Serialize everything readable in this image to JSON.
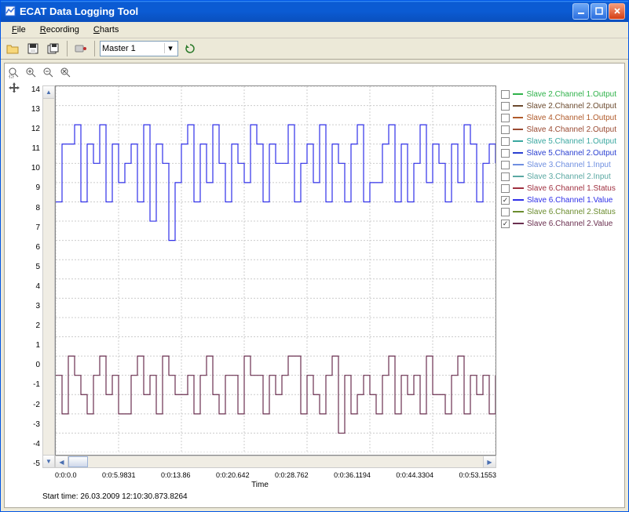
{
  "window": {
    "title": "ECAT Data Logging Tool"
  },
  "menu": {
    "file": "File",
    "recording": "Recording",
    "charts": "Charts"
  },
  "toolbar": {
    "master_selected": "Master 1"
  },
  "chart": {
    "type": "step-line",
    "background_color": "#ffffff",
    "grid_color": "#cccccc",
    "xlabel": "Time",
    "ylim": [
      -5,
      14
    ],
    "yticks": [
      -5,
      -4,
      -3,
      -2,
      -1,
      0,
      1,
      2,
      3,
      4,
      5,
      6,
      7,
      8,
      9,
      10,
      11,
      12,
      13,
      14
    ],
    "xticks": [
      "0:0:0.0",
      "0:0:5.9831",
      "0:0:13.86",
      "0:0:20.642",
      "0:0:28.762",
      "0:0:36.1194",
      "0:0:44.3304",
      "0:0:53.1553"
    ],
    "start_time_label": "Start time: 26.03.2009 12:10:30.873.8264"
  },
  "series": {
    "s1": {
      "label": "Slave 2.Channel 1.Output",
      "color": "#2fb24a",
      "checked": false
    },
    "s2": {
      "label": "Slave 2.Channel 2.Output",
      "color": "#6b4a2e",
      "checked": false
    },
    "s3": {
      "label": "Slave 4.Channel 1.Output",
      "color": "#b05a2a",
      "checked": false
    },
    "s4": {
      "label": "Slave 4.Channel 2.Output",
      "color": "#9a4a32",
      "checked": false
    },
    "s5": {
      "label": "Slave 5.Channel 1.Output",
      "color": "#3aa7a0",
      "checked": false
    },
    "s6": {
      "label": "Slave 5.Channel 2.Output",
      "color": "#2a3fd1",
      "checked": false
    },
    "s7": {
      "label": "Slave 3.Channel 1.Input",
      "color": "#6f8fe0",
      "checked": false
    },
    "s8": {
      "label": "Slave 3.Channel 2.Input",
      "color": "#5aa8a2",
      "checked": false
    },
    "s9": {
      "label": "Slave 6.Channel 1.Status",
      "color": "#a03040",
      "checked": false
    },
    "s10": {
      "label": "Slave 6.Channel 1.Value",
      "color": "#3030e8",
      "checked": true,
      "values": [
        8,
        11,
        11,
        12,
        8,
        11,
        10,
        12,
        8,
        11,
        9,
        10,
        11,
        8,
        12,
        7,
        11,
        10,
        6,
        9,
        11,
        12,
        8,
        11,
        9,
        12,
        10,
        8,
        11,
        10,
        9,
        12,
        11,
        8,
        11,
        10,
        10,
        12,
        8,
        10,
        11,
        9,
        12,
        8,
        11,
        10,
        8,
        11,
        12,
        8,
        9,
        9,
        11,
        12,
        8,
        11,
        8,
        10,
        12,
        9,
        11,
        10,
        8,
        11,
        9,
        12,
        11,
        8,
        10,
        11,
        10
      ]
    },
    "s11": {
      "label": "Slave 6.Channel 2.Status",
      "color": "#6b8c2e",
      "checked": false
    },
    "s12": {
      "label": "Slave 6.Channel 2.Value",
      "color": "#6b3050",
      "checked": true,
      "values": [
        -1,
        -3,
        0,
        -1,
        -2,
        -3,
        -1,
        0,
        -2,
        -1,
        -3,
        -3,
        -1,
        0,
        -2,
        -1,
        -3,
        0,
        -1,
        -2,
        -2,
        -1,
        -3,
        -1,
        0,
        -2,
        -3,
        -1,
        -1,
        -3,
        0,
        -1,
        -1,
        -3,
        -1,
        -2,
        -1,
        0,
        0,
        -3,
        -1,
        -2,
        -3,
        -1,
        0,
        -4,
        -1,
        -3,
        -2,
        -1,
        -2,
        -3,
        -1,
        0,
        -3,
        -1,
        -2,
        -1,
        -3,
        0,
        -2,
        -2,
        -3,
        -1,
        0,
        -3,
        -1,
        -2,
        -1,
        -3,
        -1
      ]
    }
  }
}
